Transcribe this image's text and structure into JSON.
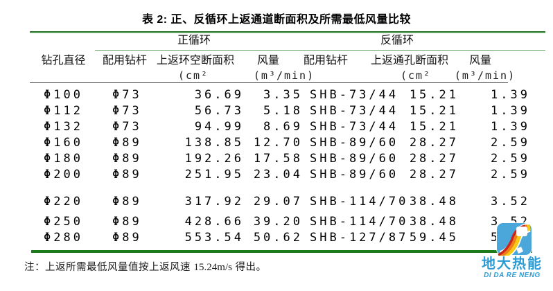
{
  "title": "表 2: 正、反循环上返通道断面积及所需最低风量比较",
  "header": {
    "diameter": "钻孔直径",
    "group_positive": "正循环",
    "group_reverse": "反循环",
    "drillpipe_pos": "配用钻杆",
    "area_pos": "上返环空断面积",
    "airflow_pos": "风量",
    "drillpipe_rev": "配用钻杆",
    "area_rev": "上返通孔断面积",
    "airflow_rev": "风量",
    "unit_area_pos": "(cm²",
    "unit_airflow_pos": "(m³/min)",
    "unit_area_rev": "(cm²",
    "unit_airflow_rev": "(m³/min)"
  },
  "rows": [
    [
      "Φ100",
      "Φ73",
      "36.69",
      "3.35",
      "SHB-73/44",
      "15.21",
      "1.39"
    ],
    [
      "Φ112",
      "Φ73",
      "56.73",
      "5.18",
      "SHB-73/44",
      "15.21",
      "1.39"
    ],
    [
      "Φ132",
      "Φ73",
      "94.99",
      "8.69",
      "SHB-73/44",
      "15.21",
      "1.39"
    ],
    [
      "Φ160",
      "Φ89",
      "138.85",
      "12.70",
      "SHB-89/60",
      "28.27",
      "2.59"
    ],
    [
      "Φ180",
      "Φ89",
      "192.26",
      "17.58",
      "SHB-89/60",
      "28.27",
      "2.59"
    ],
    [
      "Φ200",
      "Φ89",
      "251.95",
      "23.04",
      "SHB-89/60",
      "28.27",
      "2.59"
    ],
    [
      "Φ220",
      "Φ89",
      "317.92",
      "29.07",
      "SHB-114/70",
      "38.48",
      "3.52"
    ],
    [
      "Φ250",
      "Φ89",
      "428.66",
      "39.20",
      "SHB-114/70",
      "38.48",
      "3.52"
    ],
    [
      "Φ280",
      "Φ89",
      "553.54",
      "50.62",
      "SHB-127/87",
      "59.45",
      "5.44"
    ]
  ],
  "note": {
    "label": "注：",
    "text": "上返所需最低风量值按上返风速 ",
    "value": "15.24m/s",
    "suffix": " 得出。"
  },
  "logo": {
    "name": "地大热能",
    "subtitle": "DI DA RE NENG",
    "icon": "rainbow-road-icon",
    "brand_color": "#2D9CD5"
  },
  "colors": {
    "rule_green_dark": "#1C7C1C",
    "rule_green_light": "#69A869",
    "rule_dark": "#3B3B3B",
    "logo_blue": "#4BA6DA",
    "logo_red": "#C9271C",
    "logo_orange": "#EF7F1A",
    "logo_yellow": "#F6C915"
  }
}
